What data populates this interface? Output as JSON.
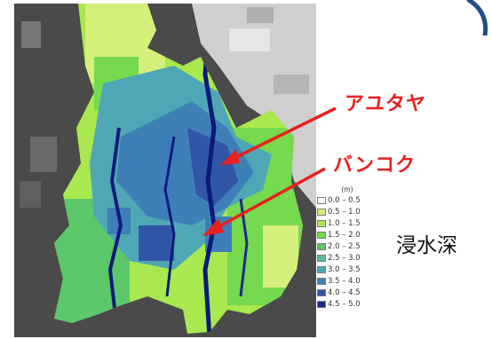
{
  "labels": {
    "ayutthaya": "アユタヤ",
    "bangkok": "バンコク"
  },
  "legend": {
    "unit": "(m)",
    "title": "浸水深",
    "classes": [
      {
        "range": "0.0 – 0.5",
        "color": "#ffffff"
      },
      {
        "range": "0.5 – 1.0",
        "color": "#d4f07a"
      },
      {
        "range": "1.0 – 1.5",
        "color": "#a9e84f"
      },
      {
        "range": "1.5 – 2.0",
        "color": "#76d94e"
      },
      {
        "range": "2.0 – 2.5",
        "color": "#5cc86a"
      },
      {
        "range": "2.5 – 3.0",
        "color": "#5fb99a"
      },
      {
        "range": "3.0 – 3.5",
        "color": "#4fa7b6"
      },
      {
        "range": "3.5 – 4.0",
        "color": "#3f7fb8"
      },
      {
        "range": "4.0 – 4.5",
        "color": "#3156a6"
      },
      {
        "range": "4.5 – 5.0",
        "color": "#1c2a8c"
      }
    ]
  },
  "colors": {
    "arrow": "#e8201f",
    "outside_dark": "#4a4a4a",
    "outside_light": "#d8d8d8",
    "river": "#0d1a7a",
    "accent_arc": "#1f4e8a"
  }
}
